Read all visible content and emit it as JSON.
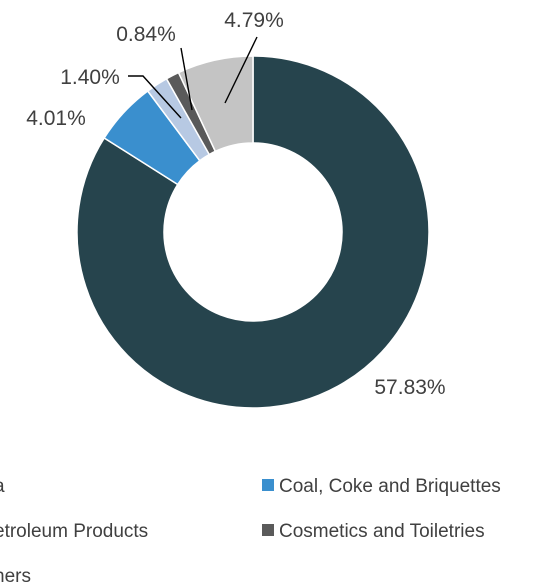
{
  "chart_data": {
    "type": "pie",
    "donut": true,
    "title": "",
    "slices": [
      {
        "name": "...a",
        "value": 57.83,
        "label": "57.83%",
        "color": "#26444d"
      },
      {
        "name": "Coal, Coke and Briquettes",
        "value": 4.01,
        "label": "4.01%",
        "color": "#3a8fce"
      },
      {
        "name": "...etroleum Products",
        "value": 1.4,
        "label": "1.40%",
        "color": "#b7c9e3"
      },
      {
        "name": "Cosmetics and Toiletries",
        "value": 0.84,
        "label": "0.84%",
        "color": "#5a5a5a"
      },
      {
        "name": "...hers",
        "value": 4.79,
        "label": "4.79%",
        "color": "#c4c4c4"
      }
    ],
    "legend_position": "bottom",
    "legend": [
      {
        "text": "a",
        "color": "#26444d"
      },
      {
        "text": "Coal, Coke and Briquettes",
        "color": "#3a8fce"
      },
      {
        "text": "etroleum Products",
        "color": "#b7c9e3"
      },
      {
        "text": "Cosmetics and Toiletries",
        "color": "#5a5a5a"
      },
      {
        "text": "hers",
        "color": "#c4c4c4"
      }
    ]
  }
}
